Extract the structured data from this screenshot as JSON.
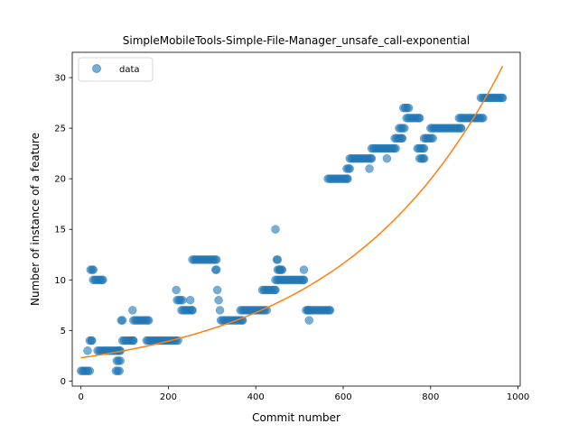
{
  "chart_data": {
    "type": "scatter",
    "title": "SimpleMobileTools-Simple-File-Manager_unsafe_call-exponential",
    "xlabel": "Commit number",
    "ylabel": "Number of instance of a feature",
    "xlim": [
      -20,
      1005
    ],
    "ylim": [
      -0.5,
      32.5
    ],
    "xticks": [
      0,
      200,
      400,
      600,
      800,
      1000
    ],
    "yticks": [
      0,
      5,
      10,
      15,
      20,
      25,
      30
    ],
    "grid": false,
    "legend": {
      "placement": "top-left",
      "entries": [
        "data"
      ]
    },
    "colors": {
      "data": "#1f77b4",
      "fit": "#ff7f0e"
    },
    "series": [
      {
        "name": "data",
        "kind": "scatter",
        "segments": [
          [
            0,
            20,
            1
          ],
          [
            15,
            15,
            3
          ],
          [
            20,
            25,
            4
          ],
          [
            22,
            28,
            11
          ],
          [
            28,
            50,
            10
          ],
          [
            38,
            85,
            3
          ],
          [
            80,
            88,
            1
          ],
          [
            82,
            90,
            2
          ],
          [
            88,
            90,
            3
          ],
          [
            92,
            95,
            6
          ],
          [
            95,
            120,
            4
          ],
          [
            118,
            118,
            7
          ],
          [
            120,
            155,
            6
          ],
          [
            150,
            222,
            4
          ],
          [
            218,
            218,
            9
          ],
          [
            220,
            232,
            8
          ],
          [
            230,
            255,
            7
          ],
          [
            250,
            250,
            8
          ],
          [
            255,
            310,
            12
          ],
          [
            308,
            310,
            11
          ],
          [
            312,
            312,
            9
          ],
          [
            315,
            315,
            8
          ],
          [
            318,
            318,
            7
          ],
          [
            320,
            370,
            6
          ],
          [
            365,
            425,
            7
          ],
          [
            415,
            445,
            9
          ],
          [
            445,
            445,
            15
          ],
          [
            448,
            450,
            12
          ],
          [
            450,
            455,
            11
          ],
          [
            455,
            460,
            11
          ],
          [
            445,
            510,
            10
          ],
          [
            510,
            510,
            11
          ],
          [
            515,
            520,
            7
          ],
          [
            522,
            522,
            6
          ],
          [
            520,
            570,
            7
          ],
          [
            565,
            610,
            20
          ],
          [
            608,
            615,
            21
          ],
          [
            615,
            665,
            22
          ],
          [
            660,
            660,
            21
          ],
          [
            665,
            720,
            23
          ],
          [
            700,
            700,
            22
          ],
          [
            718,
            735,
            24
          ],
          [
            728,
            740,
            25
          ],
          [
            738,
            750,
            27
          ],
          [
            745,
            775,
            26
          ],
          [
            770,
            785,
            23
          ],
          [
            775,
            785,
            22
          ],
          [
            785,
            805,
            24
          ],
          [
            800,
            870,
            25
          ],
          [
            865,
            920,
            26
          ],
          [
            915,
            965,
            28
          ]
        ]
      },
      {
        "name": "fit",
        "kind": "line",
        "function": "exponential",
        "params": {
          "a": 2.3,
          "b": 0.0027
        },
        "x_range": [
          0,
          965
        ]
      }
    ]
  }
}
